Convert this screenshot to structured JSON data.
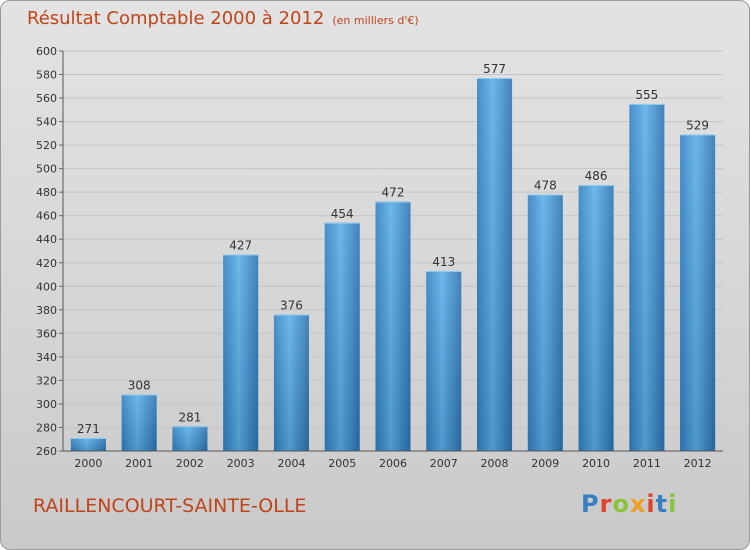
{
  "header": {
    "title": "Résultat Comptable 2000 à 2012",
    "subtitle": "(en milliers d'€)"
  },
  "footer": {
    "town": "RAILLENCOURT-SAINTE-OLLE",
    "logo_text": "Proxiti",
    "logo_letter_colors": [
      "#3a7fc4",
      "#e0432b",
      "#8ac43a",
      "#f0a020",
      "#e0432b",
      "#3a7fc4",
      "#8ac43a"
    ]
  },
  "chart_data": {
    "type": "bar",
    "title": "Résultat Comptable 2000 à 2012",
    "subtitle": "(en milliers d'€)",
    "xlabel": "",
    "ylabel": "",
    "categories": [
      "2000",
      "2001",
      "2002",
      "2003",
      "2004",
      "2005",
      "2006",
      "2007",
      "2008",
      "2009",
      "2010",
      "2011",
      "2012"
    ],
    "values": [
      271,
      308,
      281,
      427,
      376,
      454,
      472,
      413,
      577,
      478,
      486,
      555,
      529
    ],
    "ylim": [
      260,
      600
    ],
    "yticks": [
      260,
      280,
      300,
      320,
      340,
      360,
      380,
      400,
      420,
      440,
      460,
      480,
      500,
      520,
      540,
      560,
      580,
      600
    ],
    "grid": true,
    "bar_color": "#3d8fd0",
    "grid_color": "#c4c4c4"
  }
}
